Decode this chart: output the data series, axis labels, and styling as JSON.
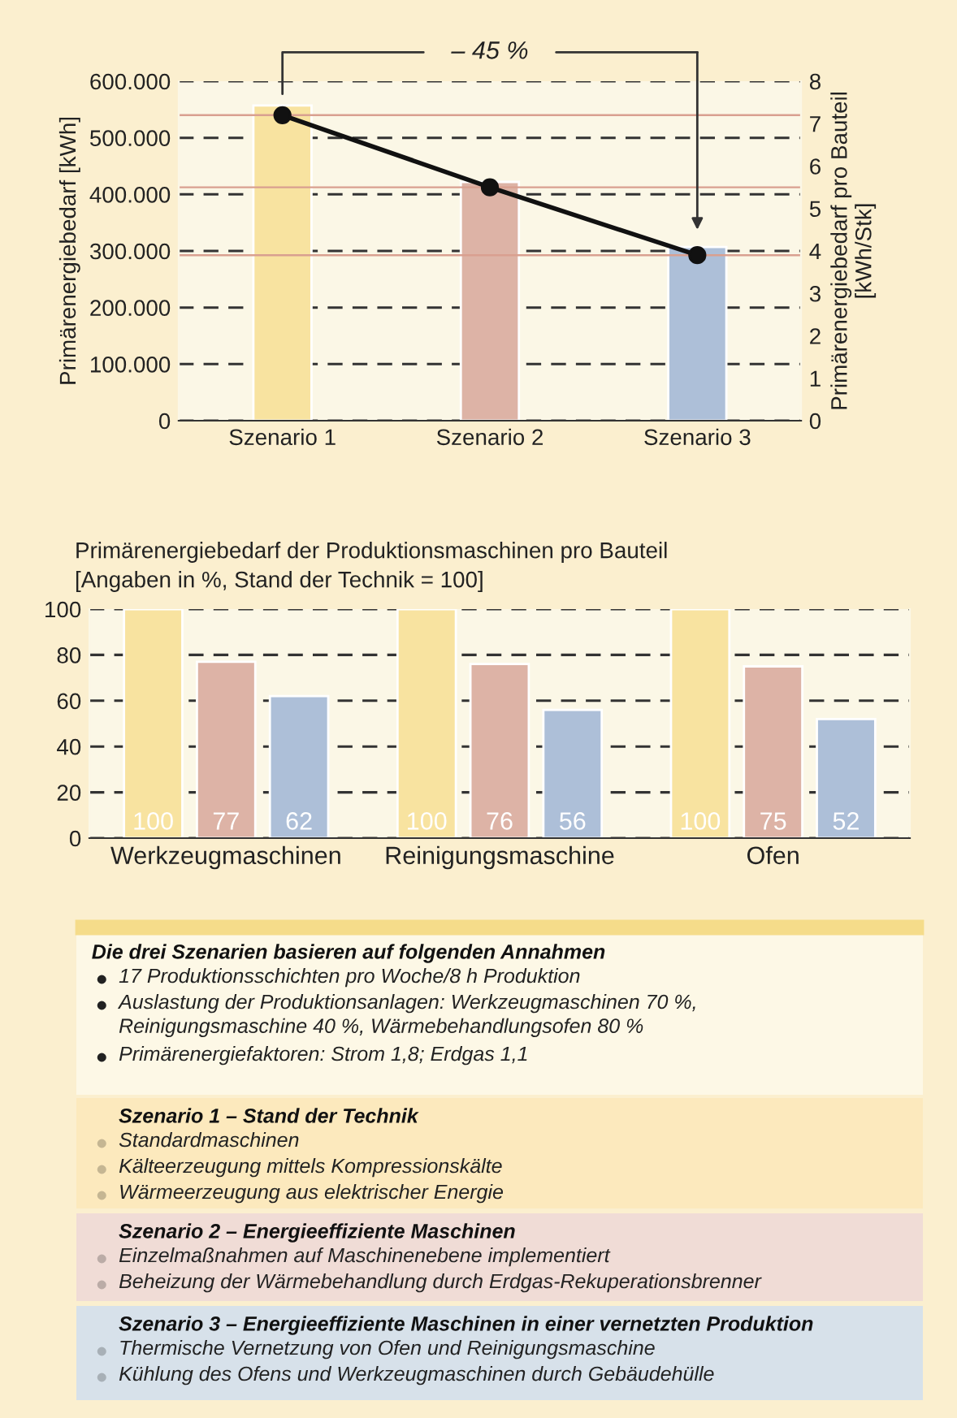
{
  "chart_data": [
    {
      "type": "bar",
      "categories": [
        "Szenario 1",
        "Szenario 2",
        "Szenario 3"
      ],
      "ylabel": "Primärenergiebedarf [kWh]",
      "y2label": "Primärenergiebedarf pro Bauteil\n[kWh/Stk]",
      "series": [
        {
          "type": "bar",
          "values": [
            557000,
            422000,
            307000
          ],
          "colors": [
            "#f8e3a0",
            "#ddb3a6",
            "#adbfd8"
          ]
        },
        {
          "type": "line",
          "axis": "y2",
          "color": "#111111",
          "values": [
            7.2,
            5.5,
            3.9
          ],
          "marker": "circle",
          "line_style": "solid"
        }
      ],
      "ylim": [
        0,
        600000
      ],
      "yticks": [
        0,
        {
          "value": 100000,
          "label": "100.000"
        },
        {
          "value": 200000,
          "label": "200.000"
        },
        {
          "value": 300000,
          "label": "300.000"
        },
        {
          "value": 400000,
          "label": "400.000"
        },
        {
          "value": 500000,
          "label": "500.000"
        },
        {
          "value": 600000,
          "label": "600.000"
        }
      ],
      "y2lim": [
        0,
        8
      ],
      "y2ticks": [
        0,
        1,
        2,
        3,
        4,
        5,
        6,
        7,
        8
      ],
      "ref_lines": [
        {
          "axis": "y2",
          "value": 7.2,
          "color": "#d9a090"
        },
        {
          "axis": "y2",
          "value": 5.5,
          "color": "#d9a090"
        },
        {
          "axis": "y2",
          "value": 3.9,
          "color": "#d9a090"
        }
      ],
      "annotations": [
        "– 45 %"
      ],
      "grid": "y"
    },
    {
      "type": "bar",
      "title": "Primärenergiebedarf der Produktionsmaschinen pro Bauteil",
      "subtitle": "[Angaben in %, Stand der Technik = 100]",
      "categories": [
        "Werkzeugmaschinen",
        "Reinigungsmaschine",
        "Ofen"
      ],
      "series": [
        {
          "color": "#f8e3a0",
          "values": [
            100,
            100,
            100
          ]
        },
        {
          "color": "#ddb3a6",
          "values": [
            77,
            76,
            75
          ]
        },
        {
          "color": "#adbfd8",
          "values": [
            62,
            56,
            52
          ]
        }
      ],
      "ylim": [
        0,
        100
      ],
      "yticks": [
        0,
        20,
        40,
        60,
        80,
        100
      ],
      "data_labels": true,
      "grid": "y"
    },
    {
      "type": "other",
      "color": "#fdf8e6",
      "title": "Die drei Szenarien basieren auf folgenden Annahmen",
      "annotations": [
        "17 Produktionsschichten pro Woche/8 h Produktion",
        "Auslastung der Produktionsanlagen: Werkzeugmaschinen 70 %,\nReinigungsmaschine 40 %, Wärmebehandlungsofen 80 %",
        "Primärenergiefaktoren: Strom 1,8; Erdgas 1,1"
      ]
    },
    {
      "type": "other",
      "color": "#fce9bd",
      "title": "Szenario 1 – Stand der Technik",
      "annotations": [
        "Standardmaschinen",
        "Kälteerzeugung mittels Kompressionskälte",
        "Wärmeerzeugung aus elektrischer Energie"
      ]
    },
    {
      "type": "other",
      "color": "#f0dcd6",
      "title": "Szenario 2 – Energieeffiziente Maschinen",
      "annotations": [
        "Einzelmaßnahmen auf Maschinenebene implementiert",
        "Beheizung der Wärmebehandlung durch Erdgas-Rekuperationsbrenner"
      ]
    },
    {
      "type": "other",
      "color": "#d7e1ea",
      "title": "Szenario 3 – Energieeffiziente Maschinen in einer vernetzten Produktion",
      "annotations": [
        "Thermische Vernetzung von Ofen und Reinigungsmaschine",
        "Kühlung des Ofens und Werkzeugmaschinen durch Gebäudehülle"
      ]
    }
  ]
}
